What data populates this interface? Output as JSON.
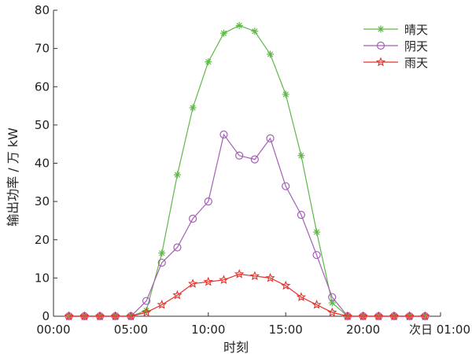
{
  "chart_data": {
    "type": "line",
    "xlabel": "时刻",
    "ylabel": "输出功率 / 万 kW",
    "x": [
      1,
      2,
      3,
      4,
      5,
      6,
      7,
      8,
      9,
      10,
      11,
      12,
      13,
      14,
      15,
      16,
      17,
      18,
      19,
      20,
      21,
      22,
      23,
      24
    ],
    "x_ticks": [
      {
        "value": 0,
        "label": "00:00"
      },
      {
        "value": 5,
        "label": "05:00"
      },
      {
        "value": 10,
        "label": "10:00"
      },
      {
        "value": 15,
        "label": "15:00"
      },
      {
        "value": 20,
        "label": "20:00"
      },
      {
        "value": 25,
        "label": "次日 01:00"
      }
    ],
    "xlim": [
      0,
      25
    ],
    "ylim": [
      0,
      80
    ],
    "y_ticks": [
      0,
      10,
      20,
      30,
      40,
      50,
      60,
      70,
      80
    ],
    "grid": false,
    "legend_position": "top-right",
    "series": [
      {
        "name": "晴天",
        "color": "#5fb848",
        "marker": "asterisk",
        "values": [
          0,
          0,
          0,
          0,
          0,
          1.5,
          16.5,
          37,
          54.5,
          66.5,
          74,
          76,
          74.5,
          68.5,
          58,
          42,
          22,
          3.5,
          0,
          0,
          0,
          0,
          0,
          0
        ]
      },
      {
        "name": "阴天",
        "color": "#a35fb5",
        "marker": "circle",
        "values": [
          0,
          0,
          0,
          0,
          0,
          4,
          14,
          18,
          25.5,
          30,
          47.5,
          42,
          41,
          46.5,
          34,
          26.5,
          16,
          5,
          0,
          0,
          0,
          0,
          0,
          0
        ]
      },
      {
        "name": "雨天",
        "color": "#e8302a",
        "marker": "star",
        "values": [
          0,
          0,
          0,
          0,
          0,
          1,
          3,
          5.5,
          8.5,
          9,
          9.5,
          11,
          10.5,
          10,
          8,
          5,
          3,
          1,
          0,
          0,
          0,
          0,
          0,
          0
        ]
      }
    ]
  }
}
